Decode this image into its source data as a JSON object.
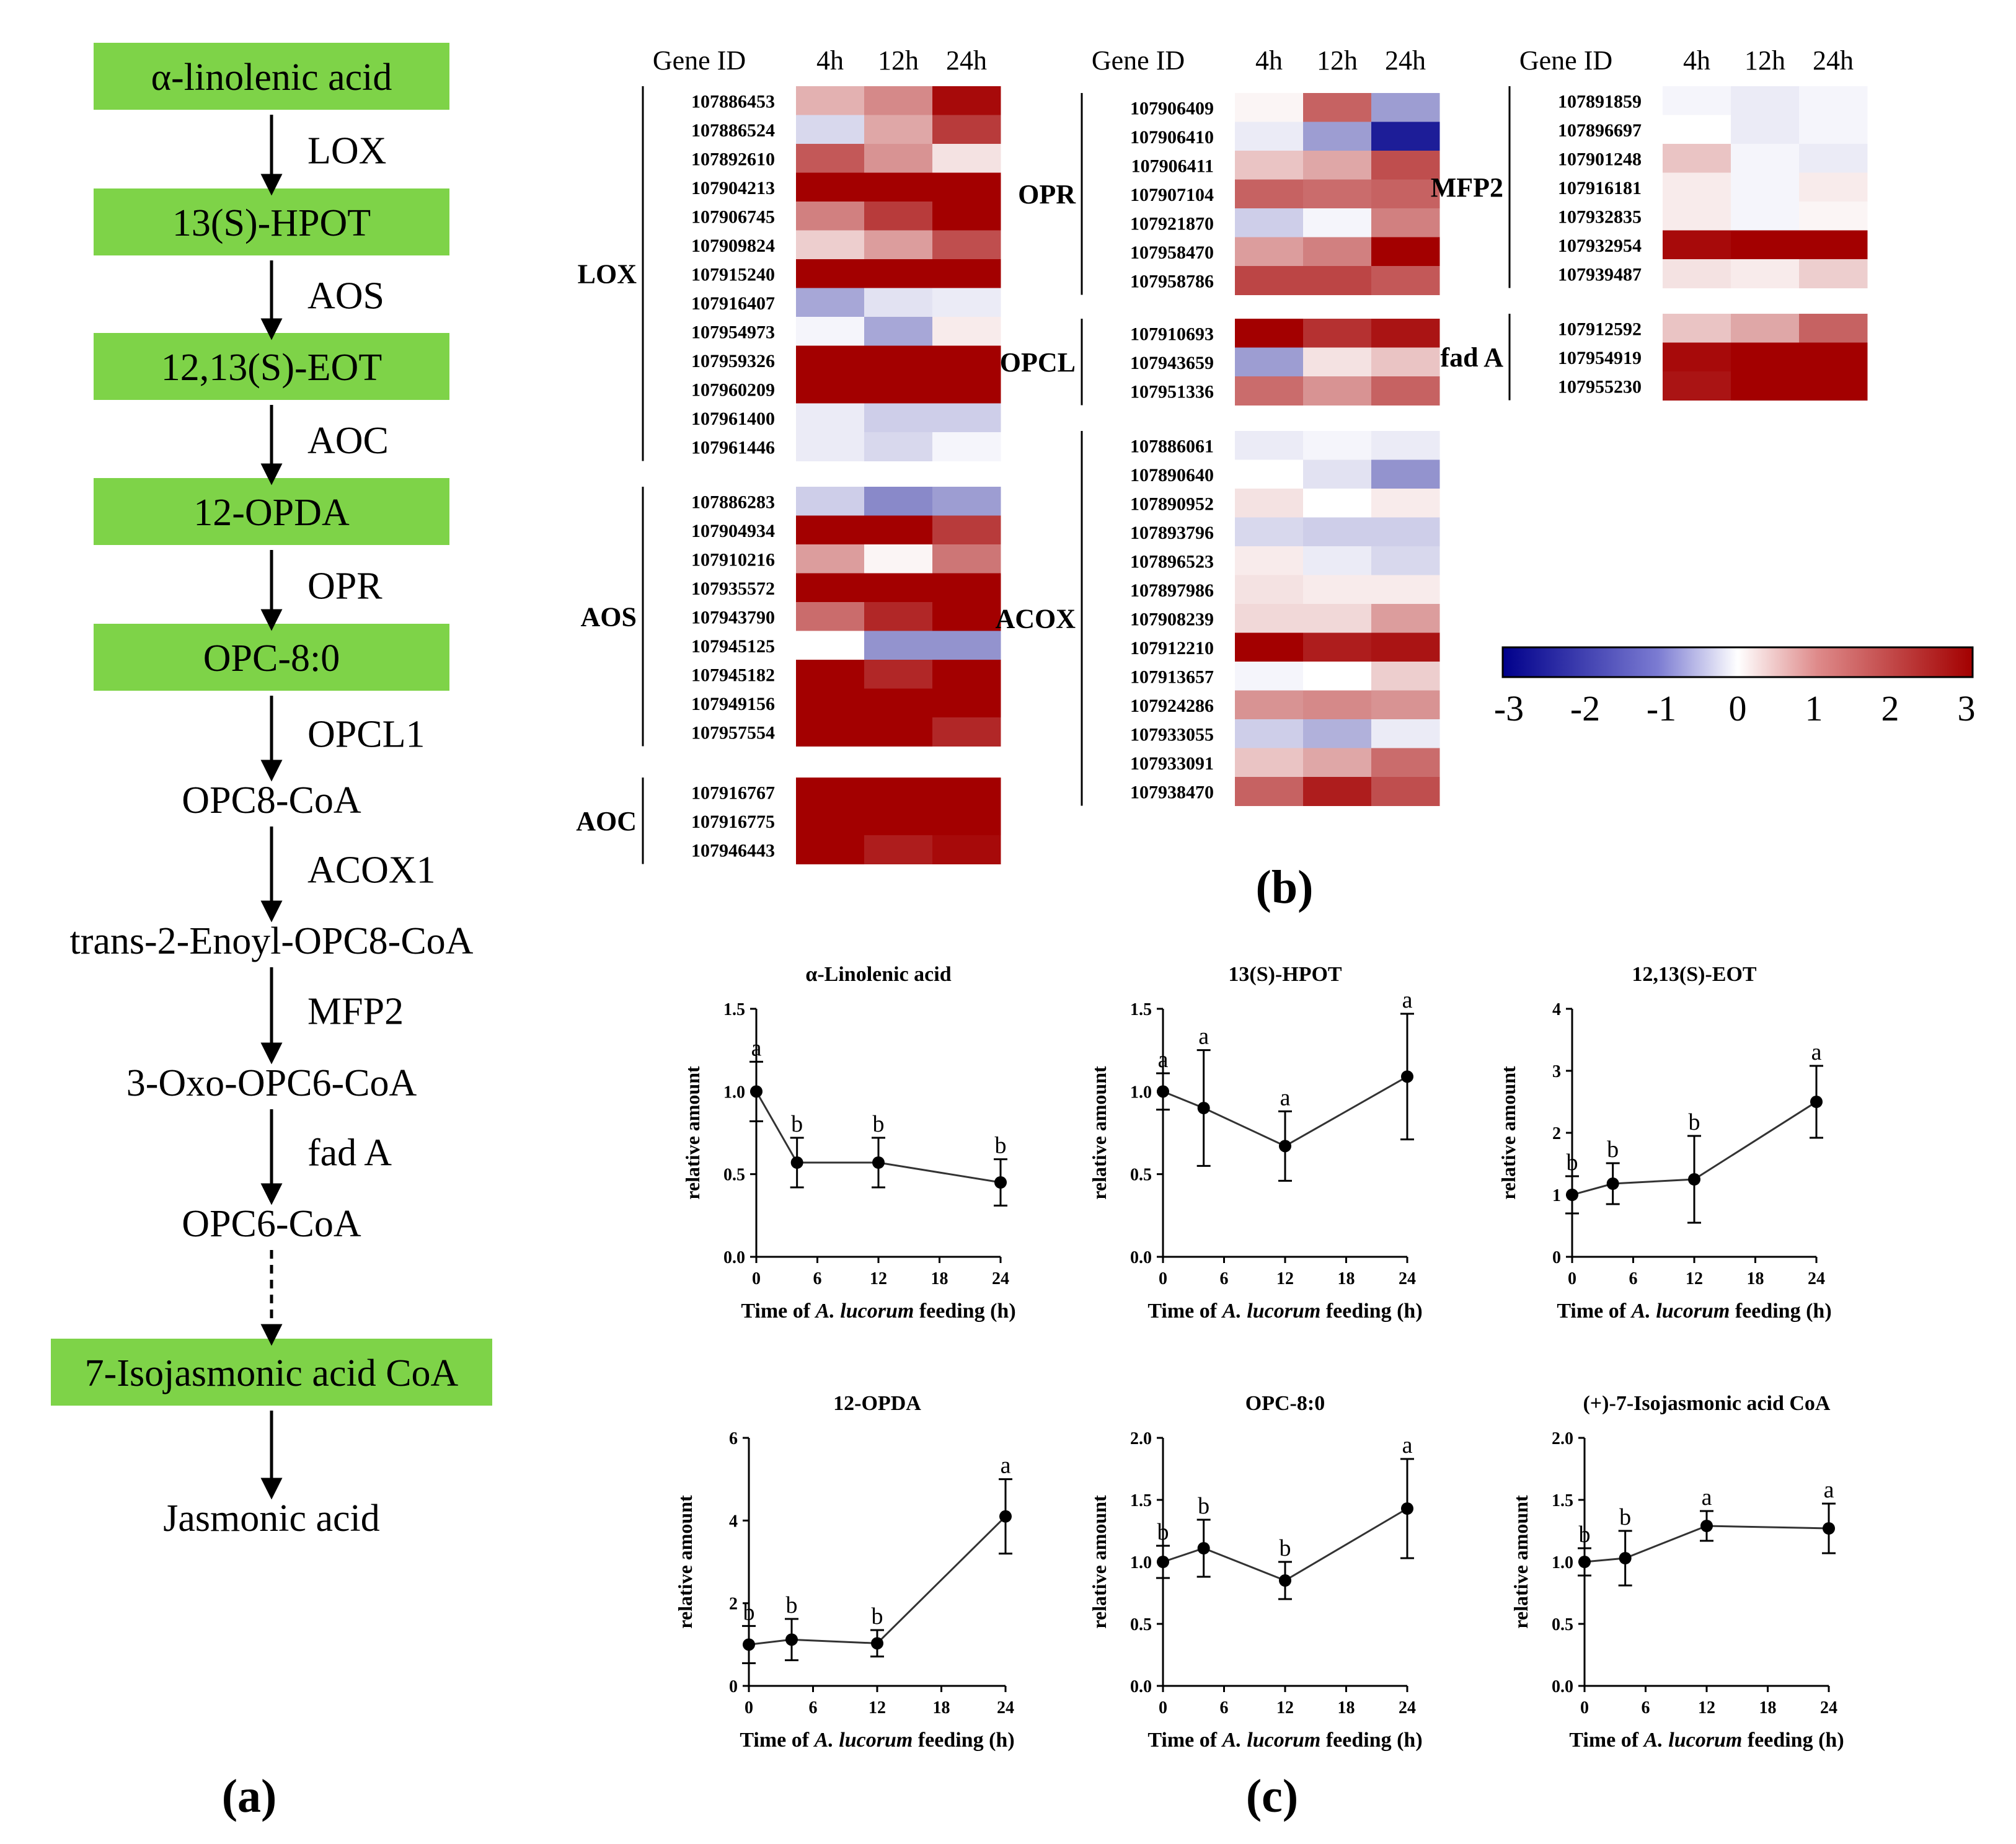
{
  "panel_labels": {
    "a": "(a)",
    "b": "(b)",
    "c": "(c)"
  },
  "colors": {
    "pathway_box": "#7ED348",
    "heat_low": "#00008B",
    "heat_mid": "#FFFFFF",
    "heat_high": "#A30000"
  },
  "pathway": {
    "nodes": [
      {
        "label": "α-linolenic acid",
        "boxed": true
      },
      {
        "label": "13(S)-HPOT",
        "boxed": true
      },
      {
        "label": "12,13(S)-EOT",
        "boxed": true
      },
      {
        "label": "12-OPDA",
        "boxed": true
      },
      {
        "label": "OPC-8:0",
        "boxed": true
      },
      {
        "label": "OPC8-CoA",
        "boxed": false
      },
      {
        "label": "trans-2-Enoyl-OPC8-CoA",
        "boxed": false
      },
      {
        "label": "3-Oxo-OPC6-CoA",
        "boxed": false
      },
      {
        "label": "OPC6-CoA",
        "boxed": false
      },
      {
        "label": "7-Isojasmonic acid CoA",
        "boxed": true
      },
      {
        "label": "Jasmonic acid",
        "boxed": false
      }
    ],
    "steps": [
      {
        "enzyme": "LOX",
        "dashed": false
      },
      {
        "enzyme": "AOS",
        "dashed": false
      },
      {
        "enzyme": "AOC",
        "dashed": false
      },
      {
        "enzyme": "OPR",
        "dashed": false
      },
      {
        "enzyme": "OPCL1",
        "dashed": false
      },
      {
        "enzyme": "ACOX1",
        "dashed": false
      },
      {
        "enzyme": "MFP2",
        "dashed": false
      },
      {
        "enzyme": "fad A",
        "dashed": false
      },
      {
        "enzyme": "",
        "dashed": true
      },
      {
        "enzyme": "",
        "dashed": false
      }
    ]
  },
  "chart_data": [
    {
      "type": "heatmap",
      "title": "",
      "header": {
        "gene_id": "Gene ID",
        "columns": [
          "4h",
          "12h",
          "24h"
        ]
      },
      "colorbar": {
        "range": [
          -3,
          3
        ],
        "ticks": [
          "-3",
          "-2",
          "-1",
          "0",
          "1",
          "2",
          "3"
        ]
      },
      "groups": [
        {
          "name": "LOX",
          "rows": [
            {
              "id": "107886453",
              "values": [
                0.8,
                1.2,
                2.5
              ]
            },
            {
              "id": "107886524",
              "values": [
                -0.4,
                0.9,
                2.0
              ]
            },
            {
              "id": "107892610",
              "values": [
                1.7,
                1.1,
                0.3
              ]
            },
            {
              "id": "107904213",
              "values": [
                3.0,
                2.6,
                2.8
              ]
            },
            {
              "id": "107906745",
              "values": [
                1.3,
                2.0,
                3.0
              ]
            },
            {
              "id": "107909824",
              "values": [
                0.5,
                1.0,
                1.8
              ]
            },
            {
              "id": "107915240",
              "values": [
                3.0,
                2.6,
                2.9
              ]
            },
            {
              "id": "107916407",
              "values": [
                -0.9,
                -0.3,
                -0.2
              ]
            },
            {
              "id": "107954973",
              "values": [
                -0.1,
                -0.9,
                0.2
              ]
            },
            {
              "id": "107959326",
              "values": [
                3.0,
                3.0,
                3.0
              ]
            },
            {
              "id": "107960209",
              "values": [
                3.0,
                3.0,
                3.0
              ]
            },
            {
              "id": "107961400",
              "values": [
                -0.2,
                -0.5,
                -0.5
              ]
            },
            {
              "id": "107961446",
              "values": [
                -0.2,
                -0.4,
                -0.1
              ]
            }
          ]
        },
        {
          "name": "AOS",
          "rows": [
            {
              "id": "107886283",
              "values": [
                -0.5,
                -1.2,
                -1.0
              ]
            },
            {
              "id": "107904934",
              "values": [
                3.0,
                2.6,
                2.0
              ]
            },
            {
              "id": "107910216",
              "values": [
                1.0,
                0.1,
                1.4
              ]
            },
            {
              "id": "107935572",
              "values": [
                3.0,
                3.0,
                3.0
              ]
            },
            {
              "id": "107943790",
              "values": [
                1.5,
                2.2,
                3.0
              ]
            },
            {
              "id": "107945125",
              "values": [
                0.0,
                -1.1,
                -1.1
              ]
            },
            {
              "id": "107945182",
              "values": [
                2.7,
                2.2,
                2.9
              ]
            },
            {
              "id": "107949156",
              "values": [
                3.0,
                3.0,
                3.0
              ]
            },
            {
              "id": "107957554",
              "values": [
                3.0,
                2.8,
                2.2
              ]
            }
          ]
        },
        {
          "name": "AOC",
          "rows": [
            {
              "id": "107916767",
              "values": [
                3.0,
                3.0,
                3.0
              ]
            },
            {
              "id": "107916775",
              "values": [
                3.0,
                2.8,
                2.8
              ]
            },
            {
              "id": "107946443",
              "values": [
                2.9,
                2.3,
                2.5
              ]
            }
          ]
        },
        {
          "name": "OPR",
          "rows": [
            {
              "id": "107906409",
              "values": [
                0.1,
                1.6,
                -1.0
              ]
            },
            {
              "id": "107906410",
              "values": [
                -0.2,
                -1.0,
                -2.3
              ]
            },
            {
              "id": "107906411",
              "values": [
                0.6,
                0.9,
                1.8
              ]
            },
            {
              "id": "107907104",
              "values": [
                1.6,
                1.5,
                1.6
              ]
            },
            {
              "id": "107921870",
              "values": [
                -0.5,
                -0.1,
                1.3
              ]
            },
            {
              "id": "107958470",
              "values": [
                1.0,
                1.3,
                2.6
              ]
            },
            {
              "id": "107958786",
              "values": [
                1.9,
                1.9,
                1.7
              ]
            }
          ]
        },
        {
          "name": "OPCL",
          "rows": [
            {
              "id": "107910693",
              "values": [
                2.8,
                2.1,
                2.4
              ]
            },
            {
              "id": "107943659",
              "values": [
                -1.0,
                0.3,
                0.6
              ]
            },
            {
              "id": "107951336",
              "values": [
                1.5,
                1.1,
                1.6
              ]
            }
          ]
        },
        {
          "name": "ACOX",
          "rows": [
            {
              "id": "107886061",
              "values": [
                -0.2,
                -0.1,
                -0.2
              ]
            },
            {
              "id": "107890640",
              "values": [
                0.0,
                -0.3,
                -1.1
              ]
            },
            {
              "id": "107890952",
              "values": [
                0.3,
                0.0,
                0.2
              ]
            },
            {
              "id": "107893796",
              "values": [
                -0.4,
                -0.5,
                -0.5
              ]
            },
            {
              "id": "107896523",
              "values": [
                0.2,
                -0.2,
                -0.4
              ]
            },
            {
              "id": "107897986",
              "values": [
                0.3,
                0.2,
                0.2
              ]
            },
            {
              "id": "107908239",
              "values": [
                0.4,
                0.4,
                1.0
              ]
            },
            {
              "id": "107912210",
              "values": [
                2.6,
                2.3,
                2.4
              ]
            },
            {
              "id": "107913657",
              "values": [
                -0.1,
                0.0,
                0.5
              ]
            },
            {
              "id": "107924286",
              "values": [
                1.1,
                1.2,
                1.1
              ]
            },
            {
              "id": "107933055",
              "values": [
                -0.5,
                -0.8,
                -0.2
              ]
            },
            {
              "id": "107933091",
              "values": [
                0.6,
                0.9,
                1.5
              ]
            },
            {
              "id": "107938470",
              "values": [
                1.6,
                2.3,
                1.8
              ]
            }
          ]
        },
        {
          "name": "MFP2",
          "rows": [
            {
              "id": "107891859",
              "values": [
                -0.1,
                -0.2,
                -0.1
              ]
            },
            {
              "id": "107896697",
              "values": [
                0.0,
                -0.2,
                -0.1
              ]
            },
            {
              "id": "107901248",
              "values": [
                0.6,
                -0.1,
                -0.2
              ]
            },
            {
              "id": "107916181",
              "values": [
                0.2,
                -0.1,
                0.2
              ]
            },
            {
              "id": "107932835",
              "values": [
                0.2,
                -0.1,
                0.1
              ]
            },
            {
              "id": "107932954",
              "values": [
                2.5,
                3.0,
                3.0
              ]
            },
            {
              "id": "107939487",
              "values": [
                0.3,
                0.2,
                0.5
              ]
            }
          ]
        },
        {
          "name": "fad A",
          "rows": [
            {
              "id": "107912592",
              "values": [
                0.6,
                0.9,
                1.6
              ]
            },
            {
              "id": "107954919",
              "values": [
                2.5,
                2.9,
                3.0
              ]
            },
            {
              "id": "107955230",
              "values": [
                2.4,
                2.6,
                2.7
              ]
            }
          ]
        }
      ]
    },
    {
      "type": "line",
      "title": "α-Linolenic acid",
      "xlabel_pre": "Time of ",
      "xlabel_species": "A. lucorum",
      "xlabel_post": " feeding (h)",
      "ylabel": "relative amount",
      "x": [
        0,
        4,
        12,
        24
      ],
      "y": [
        1.0,
        0.57,
        0.57,
        0.45
      ],
      "err": [
        0.18,
        0.15,
        0.15,
        0.14
      ],
      "sig": [
        "a",
        "b",
        "b",
        "b"
      ],
      "xlim": [
        0,
        24
      ],
      "xticks": [
        0,
        6,
        12,
        18,
        24
      ],
      "ylim": [
        0,
        1.5
      ],
      "yticks": [
        "0.0",
        "0.5",
        "1.0",
        "1.5"
      ]
    },
    {
      "type": "line",
      "title": "13(S)-HPOT",
      "xlabel_pre": "Time of ",
      "xlabel_species": "A. lucorum",
      "xlabel_post": " feeding (h)",
      "ylabel": "relative amount",
      "x": [
        0,
        4,
        12,
        24
      ],
      "y": [
        1.0,
        0.9,
        0.67,
        1.09
      ],
      "err": [
        0.11,
        0.35,
        0.21,
        0.38
      ],
      "sig": [
        "a",
        "a",
        "a",
        "a"
      ],
      "xlim": [
        0,
        24
      ],
      "xticks": [
        0,
        6,
        12,
        18,
        24
      ],
      "ylim": [
        0,
        1.5
      ],
      "yticks": [
        "0.0",
        "0.5",
        "1.0",
        "1.5"
      ]
    },
    {
      "type": "line",
      "title": "12,13(S)-EOT",
      "xlabel_pre": "Time of ",
      "xlabel_species": "A. lucorum",
      "xlabel_post": " feeding (h)",
      "ylabel": "relative amount",
      "x": [
        0,
        4,
        12,
        24
      ],
      "y": [
        1.0,
        1.18,
        1.25,
        2.5
      ],
      "err": [
        0.3,
        0.33,
        0.7,
        0.58
      ],
      "sig": [
        "b",
        "b",
        "b",
        "a"
      ],
      "xlim": [
        0,
        24
      ],
      "xticks": [
        0,
        6,
        12,
        18,
        24
      ],
      "ylim": [
        0,
        4
      ],
      "yticks": [
        "0",
        "1",
        "2",
        "3",
        "4"
      ]
    },
    {
      "type": "line",
      "title": "12-OPDA",
      "xlabel_pre": "Time of ",
      "xlabel_species": "A. lucorum",
      "xlabel_post": " feeding (h)",
      "ylabel": "relative amount",
      "x": [
        0,
        4,
        12,
        24
      ],
      "y": [
        1.0,
        1.12,
        1.03,
        4.1
      ],
      "err": [
        0.45,
        0.5,
        0.32,
        0.9
      ],
      "sig": [
        "b",
        "b",
        "b",
        "a"
      ],
      "xlim": [
        0,
        24
      ],
      "xticks": [
        0,
        6,
        12,
        18,
        24
      ],
      "ylim": [
        0,
        6
      ],
      "yticks": [
        "0",
        "2",
        "4",
        "6"
      ]
    },
    {
      "type": "line",
      "title": "OPC-8:0",
      "xlabel_pre": "Time of ",
      "xlabel_species": "A. lucorum",
      "xlabel_post": " feeding (h)",
      "ylabel": "relative amount",
      "x": [
        0,
        4,
        12,
        24
      ],
      "y": [
        1.0,
        1.11,
        0.85,
        1.43
      ],
      "err": [
        0.13,
        0.23,
        0.15,
        0.4
      ],
      "sig": [
        "b",
        "b",
        "b",
        "a"
      ],
      "xlim": [
        0,
        24
      ],
      "xticks": [
        0,
        6,
        12,
        18,
        24
      ],
      "ylim": [
        0,
        2.0
      ],
      "yticks": [
        "0.0",
        "0.5",
        "1.0",
        "1.5",
        "2.0"
      ]
    },
    {
      "type": "line",
      "title": "(+)-7-Isojasmonic acid CoA",
      "xlabel_pre": "Time of ",
      "xlabel_species": "A. lucorum",
      "xlabel_post": " feeding (h)",
      "ylabel": "relative amount",
      "x": [
        0,
        4,
        12,
        24
      ],
      "y": [
        1.0,
        1.03,
        1.29,
        1.27
      ],
      "err": [
        0.11,
        0.22,
        0.12,
        0.2
      ],
      "sig": [
        "b",
        "b",
        "a",
        "a"
      ],
      "xlim": [
        0,
        24
      ],
      "xticks": [
        0,
        6,
        12,
        18,
        24
      ],
      "ylim": [
        0,
        2.0
      ],
      "yticks": [
        "0.0",
        "0.5",
        "1.0",
        "1.5",
        "2.0"
      ]
    }
  ]
}
